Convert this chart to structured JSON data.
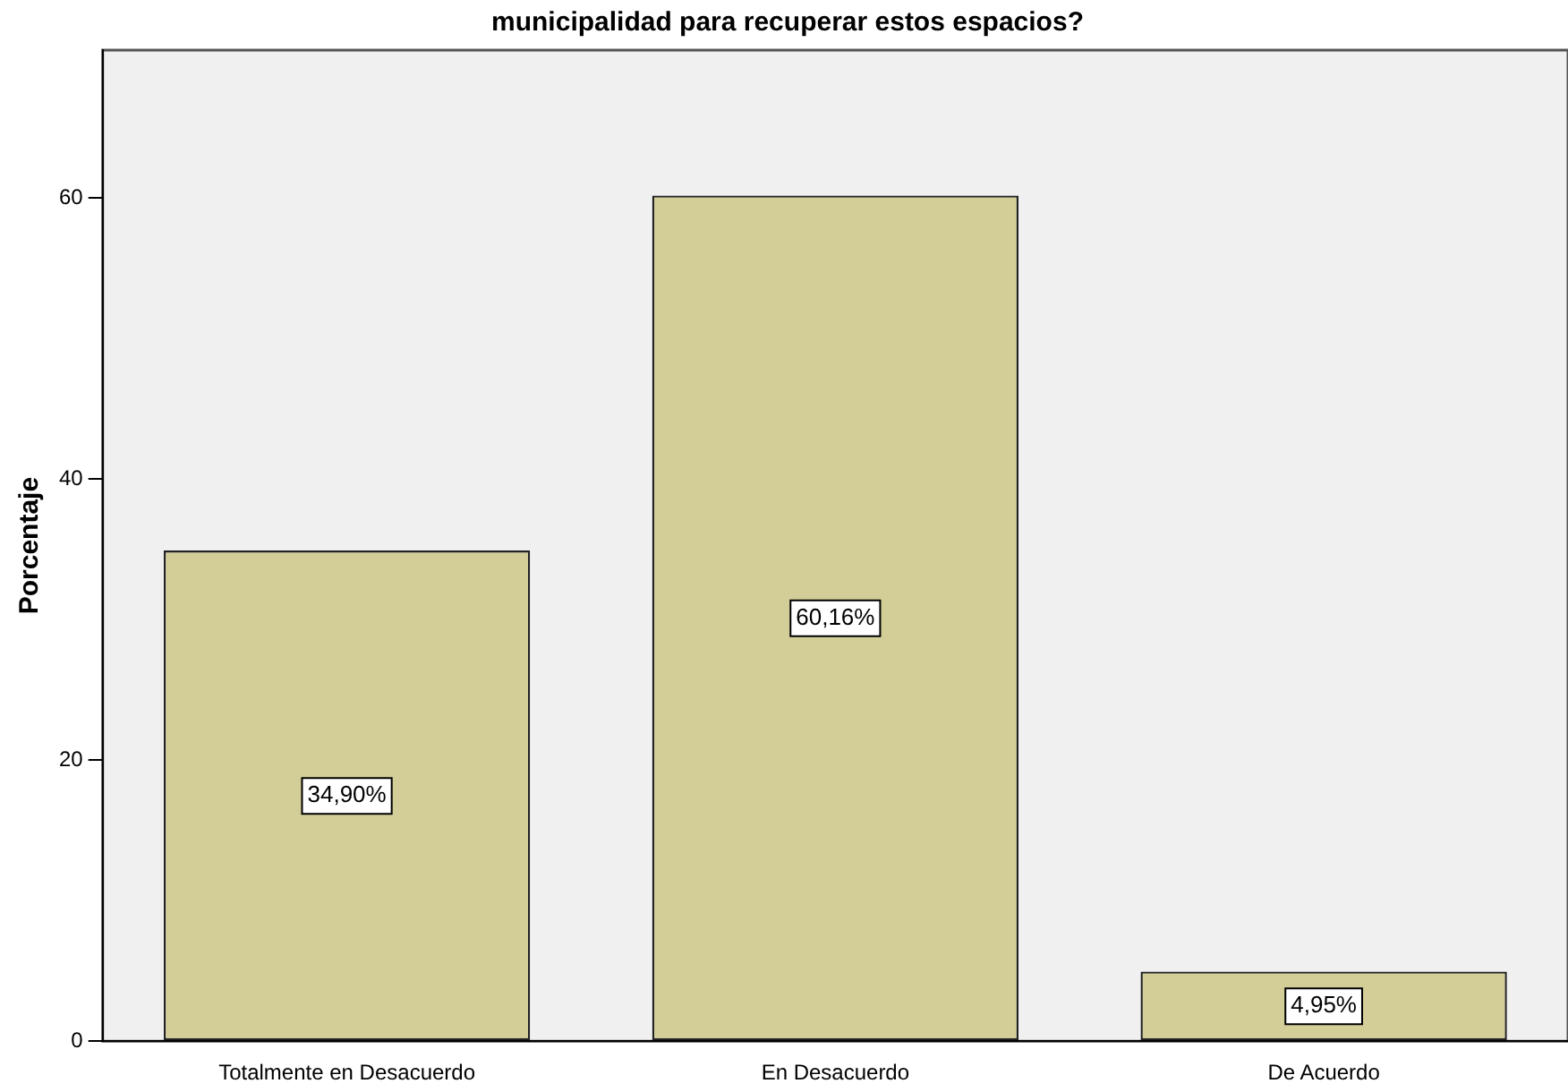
{
  "chart_data": {
    "type": "bar",
    "title": "municipalidad para recuperar estos espacios?",
    "ylabel": "Porcentaje",
    "categories": [
      "Totalmente en Desacuerdo",
      "En Desacuerdo",
      "De Acuerdo"
    ],
    "values": [
      34.9,
      60.16,
      4.95
    ],
    "value_labels": [
      "34,90%",
      "60,16%",
      "4,95%"
    ],
    "color": "#d3ce97",
    "ylim": [
      0,
      70.5
    ],
    "yticks": [
      0,
      20,
      40,
      60
    ],
    "grid": false,
    "legend": false
  }
}
